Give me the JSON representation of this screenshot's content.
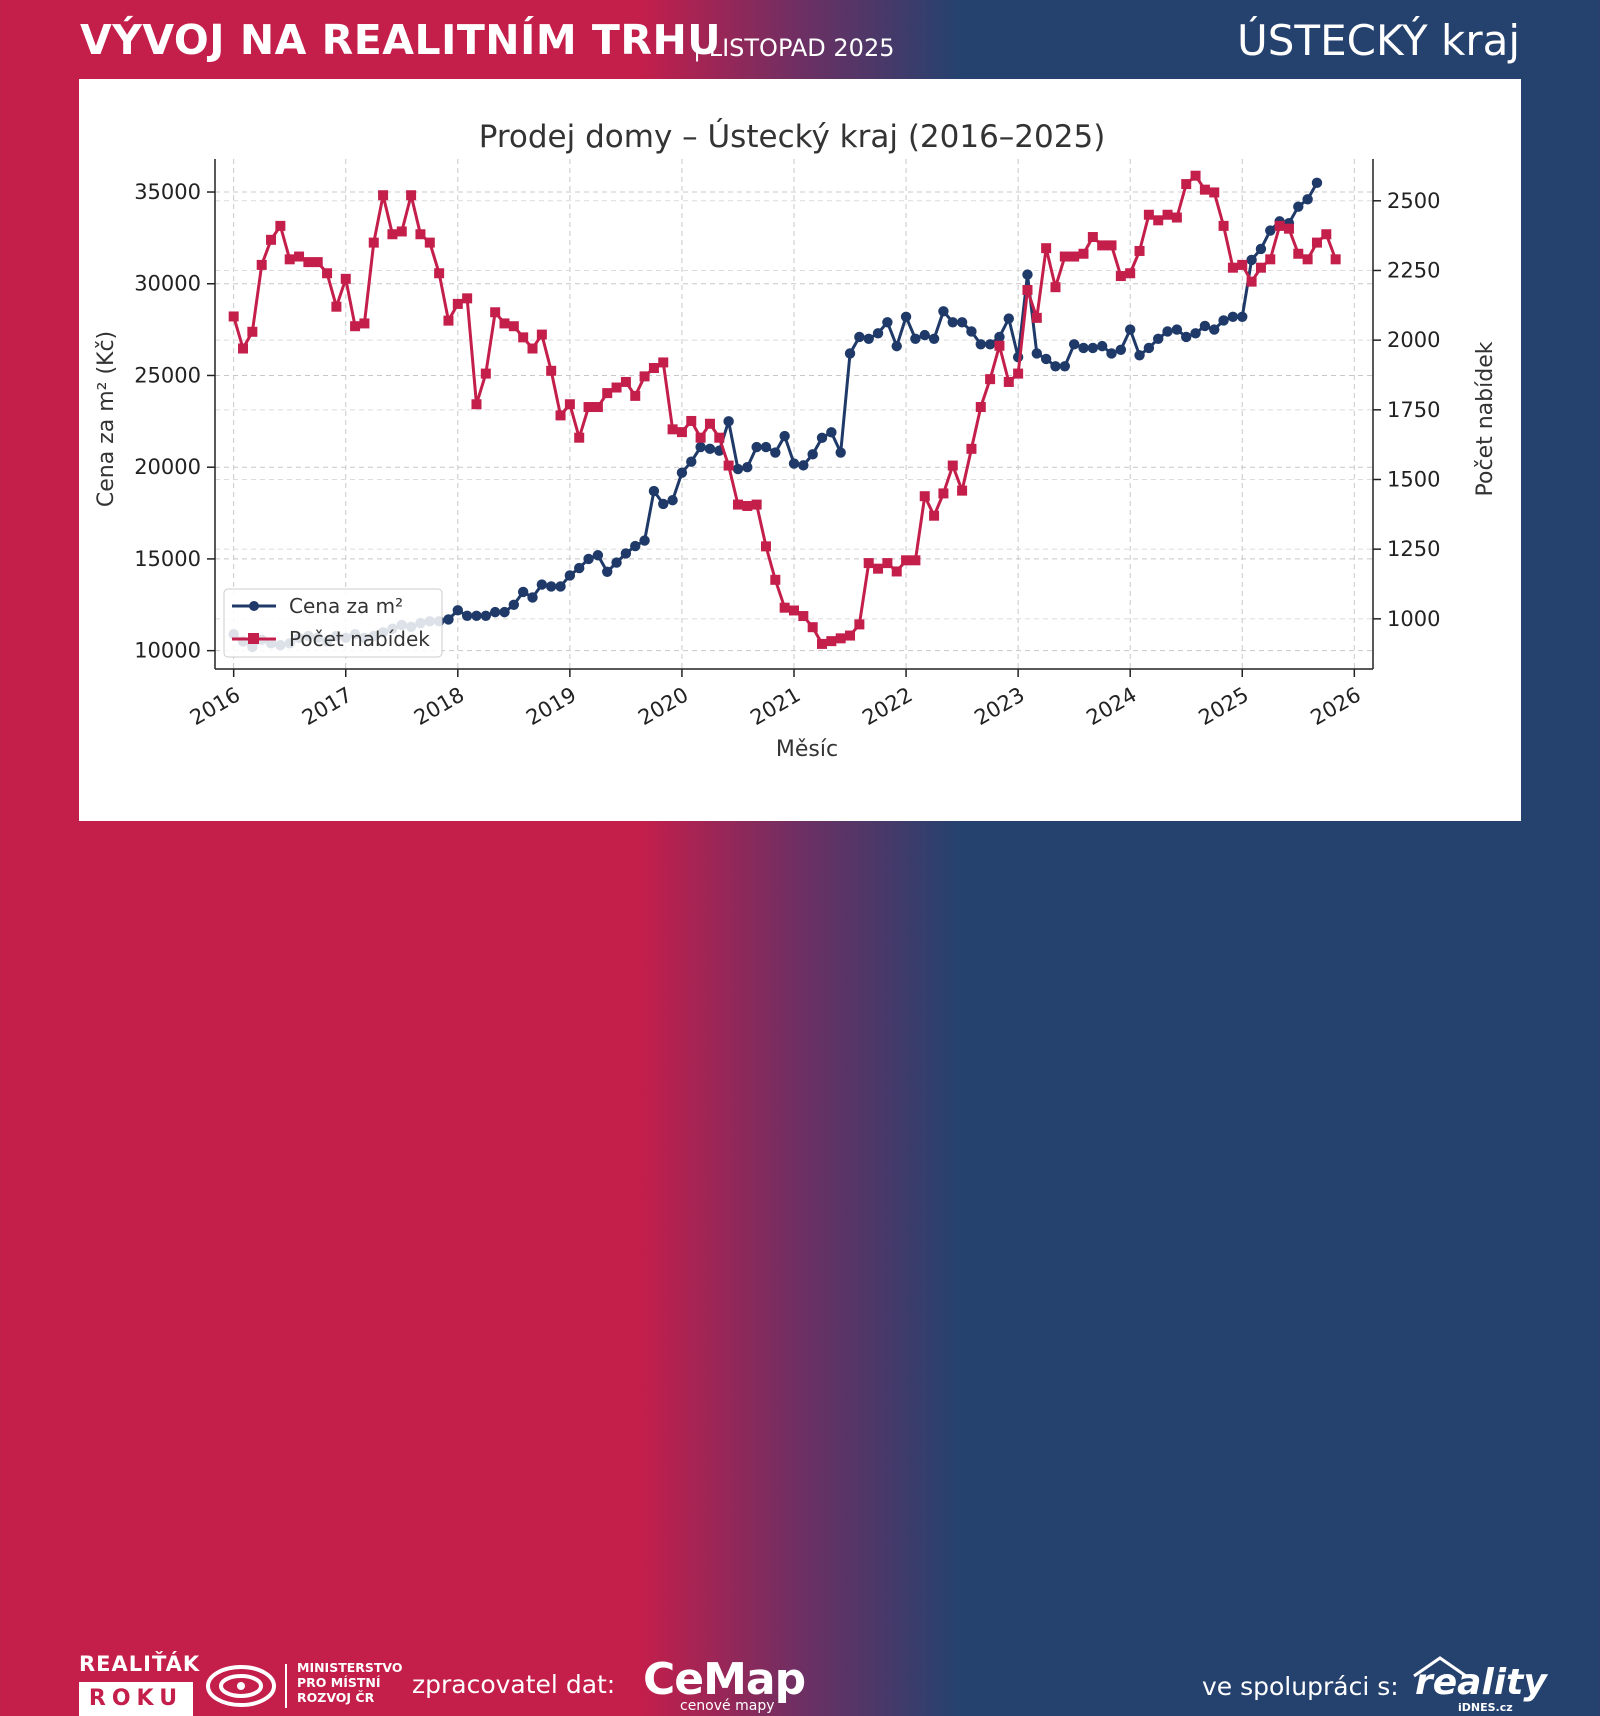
{
  "header": {
    "title": "VÝVOJ NA REALITNÍM TRHU",
    "subtitle": "| LISTOPAD 2025",
    "region": "ÚSTECKÝ kraj"
  },
  "footer": {
    "badge_top": "REALIŤÁK",
    "badge_bottom": "ROKU",
    "ministry_line1": "MINISTERSTVO",
    "ministry_line2": "PRO MÍSTNÍ",
    "ministry_line3": "ROZVOJ ČR",
    "processor_label": "zpracovatel dat:",
    "processor_name": "CeMap",
    "processor_sub": "cenové mapy",
    "partner_label": "ve spolupráci s:",
    "partner_name": "reality",
    "partner_sub": "iDNES.cz"
  },
  "colors": {
    "price_series": "#1f3a68",
    "offers_series": "#c41e4b"
  },
  "icons": [
    "realitak-logo-icon",
    "ministry-logo-icon",
    "cemap-pin-icon",
    "reality-house-icon"
  ],
  "chart_data": {
    "type": "line",
    "title": "Prodej domy – Ústecký kraj (2016–2025)",
    "xlabel": "Měsíc",
    "ylabel": "Cena za m² (Kč)",
    "ylabel_right": "Počet nabídek",
    "x_ticks": [
      "2016",
      "2017",
      "2018",
      "2019",
      "2020",
      "2021",
      "2022",
      "2023",
      "2024",
      "2025",
      "2026"
    ],
    "y_ticks": [
      10000,
      15000,
      20000,
      25000,
      30000,
      35000
    ],
    "y_right_ticks": [
      1000,
      1250,
      1500,
      1750,
      2000,
      2250,
      2500
    ],
    "ylim": [
      9000,
      36800
    ],
    "ylim_right": [
      820,
      2650
    ],
    "xlim": [
      "2015-11",
      "2026-03"
    ],
    "x_start": "2016-01",
    "grid": true,
    "legend_position": "lower-left",
    "series": [
      {
        "name": "Cena za m²",
        "axis": "left",
        "color": "#1f3a68",
        "marker": "circle",
        "values": [
          10900,
          10500,
          10200,
          10600,
          10400,
          10300,
          10400,
          10700,
          10800,
          10700,
          10500,
          10800,
          10700,
          10900,
          10700,
          10800,
          11000,
          11200,
          11400,
          11300,
          11500,
          11600,
          11600,
          11700,
          12200,
          11900,
          11900,
          11900,
          12100,
          12100,
          12500,
          13200,
          12900,
          13600,
          13500,
          13500,
          14100,
          14500,
          15000,
          15200,
          14300,
          14800,
          15300,
          15700,
          16000,
          18700,
          18000,
          18200,
          19700,
          20300,
          21100,
          21000,
          20900,
          22500,
          19900,
          20000,
          21100,
          21100,
          20800,
          21700,
          20200,
          20100,
          20700,
          21600,
          21900,
          20800,
          26200,
          27100,
          27000,
          27300,
          27900,
          26600,
          28200,
          27000,
          27200,
          27000,
          28500,
          27900,
          27900,
          27400,
          26700,
          26700,
          27100,
          28100,
          26000,
          30500,
          26200,
          25900,
          25500,
          25500,
          26700,
          26500,
          26500,
          26600,
          26200,
          26400,
          27500,
          26100,
          26500,
          27000,
          27400,
          27500,
          27100,
          27300,
          27700,
          27500,
          28000,
          28200,
          28200,
          31300,
          31900,
          32900,
          33400,
          33300,
          34200,
          34600,
          35500
        ]
      },
      {
        "name": "Počet nabídek",
        "axis": "right",
        "color": "#c41e4b",
        "marker": "square",
        "values": [
          2085,
          1970,
          2030,
          2270,
          2360,
          2410,
          2290,
          2300,
          2280,
          2280,
          2240,
          2120,
          2220,
          2050,
          2060,
          2350,
          2520,
          2380,
          2390,
          2520,
          2380,
          2350,
          2240,
          2070,
          2130,
          2150,
          1770,
          1880,
          2100,
          2060,
          2050,
          2010,
          1970,
          2020,
          1890,
          1730,
          1770,
          1650,
          1760,
          1760,
          1810,
          1830,
          1850,
          1800,
          1870,
          1900,
          1920,
          1680,
          1670,
          1710,
          1650,
          1700,
          1650,
          1550,
          1410,
          1405,
          1410,
          1260,
          1140,
          1040,
          1030,
          1010,
          970,
          910,
          920,
          930,
          940,
          980,
          1200,
          1180,
          1200,
          1170,
          1210,
          1210,
          1440,
          1370,
          1450,
          1550,
          1460,
          1610,
          1760,
          1860,
          1980,
          1850,
          1880,
          2180,
          2080,
          2330,
          2190,
          2300,
          2300,
          2310,
          2370,
          2340,
          2340,
          2230,
          2240,
          2320,
          2450,
          2430,
          2450,
          2440,
          2560,
          2590,
          2540,
          2530,
          2410,
          2260,
          2270,
          2210,
          2260,
          2290,
          2410,
          2400,
          2310,
          2290,
          2350,
          2380,
          2290
        ]
      }
    ]
  }
}
